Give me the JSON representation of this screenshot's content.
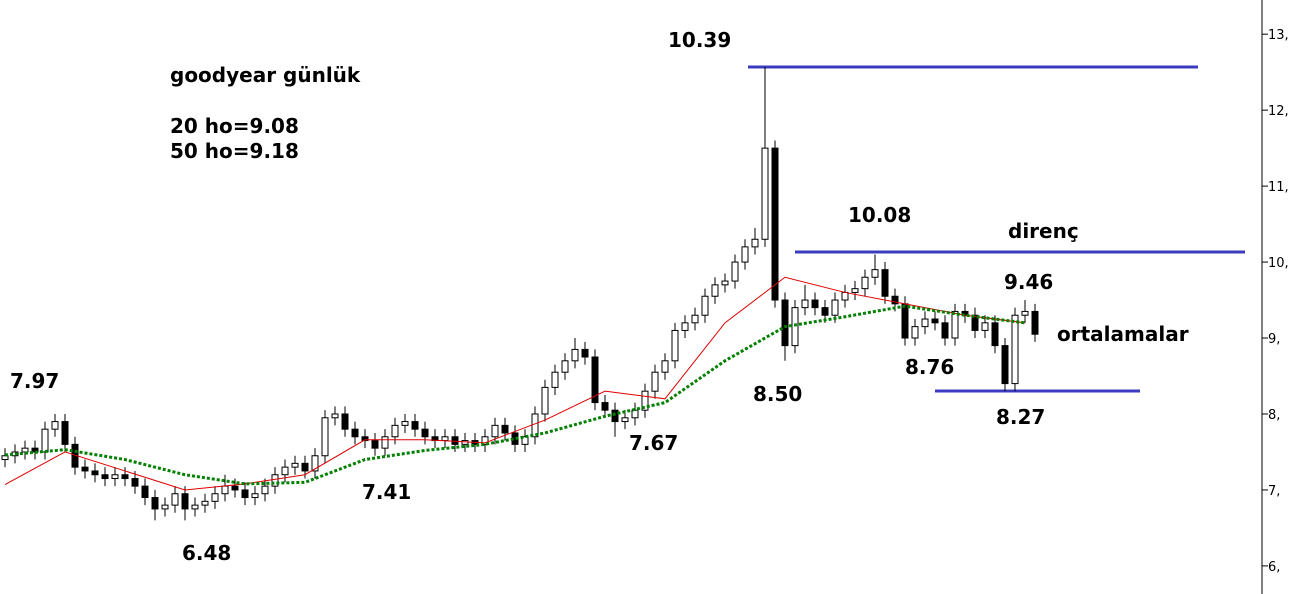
{
  "chart_data": {
    "type": "candlestick",
    "annotations": [
      "goodyear günlük",
      "20 ho=9.08",
      "50 ho=9.18",
      "10.39",
      "10.08",
      "direnç",
      "9.46",
      "ortalamalar",
      "8.50",
      "8.76",
      "8.27",
      "7.97",
      "7.67",
      "7.41",
      "6.48"
    ],
    "ylim": [
      5.63,
      13.45
    ],
    "yticks": [
      {
        "value": 13,
        "label": "13,"
      },
      {
        "value": 12,
        "label": "12,"
      },
      {
        "value": 11,
        "label": "11,"
      },
      {
        "value": 10,
        "label": "10,"
      },
      {
        "value": 9,
        "label": "9,"
      },
      {
        "value": 8,
        "label": "8,"
      },
      {
        "value": 7,
        "label": "7,"
      },
      {
        "value": 6,
        "label": "6,"
      }
    ],
    "open": [
      7.4,
      7.45,
      7.5,
      7.55,
      7.5,
      7.8,
      7.9,
      7.6,
      7.3,
      7.25,
      7.2,
      7.15,
      7.2,
      7.15,
      7.05,
      6.9,
      6.75,
      6.8,
      6.95,
      6.75,
      6.8,
      6.85,
      6.95,
      7.05,
      7.0,
      6.9,
      6.95,
      7.05,
      7.2,
      7.3,
      7.35,
      7.25,
      7.45,
      7.95,
      8.0,
      7.8,
      7.7,
      7.65,
      7.55,
      7.7,
      7.85,
      7.9,
      7.8,
      7.7,
      7.65,
      7.7,
      7.6,
      7.65,
      7.6,
      7.7,
      7.85,
      7.75,
      7.6,
      7.7,
      8.0,
      8.35,
      8.55,
      8.7,
      8.85,
      8.75,
      8.15,
      8.05,
      7.9,
      7.95,
      8.05,
      8.3,
      8.55,
      8.7,
      9.1,
      9.2,
      9.3,
      9.55,
      9.7,
      9.75,
      10.0,
      10.2,
      10.3,
      11.5,
      9.5,
      8.9,
      9.4,
      9.5,
      9.4,
      9.3,
      9.5,
      9.6,
      9.65,
      9.8,
      9.9,
      9.55,
      9.45,
      9.0,
      9.15,
      9.25,
      9.2,
      9.0,
      9.35,
      9.3,
      9.1,
      9.2,
      8.9,
      8.4,
      9.3,
      9.35
    ],
    "high": [
      7.55,
      7.6,
      7.65,
      7.65,
      7.9,
      8.0,
      8.0,
      7.7,
      7.4,
      7.35,
      7.3,
      7.3,
      7.3,
      7.25,
      7.15,
      7.0,
      6.9,
      7.05,
      7.05,
      6.9,
      6.95,
      7.05,
      7.2,
      7.15,
      7.1,
      7.05,
      7.15,
      7.3,
      7.4,
      7.45,
      7.45,
      7.55,
      8.05,
      8.1,
      8.1,
      7.9,
      7.8,
      7.75,
      7.8,
      7.95,
      8.0,
      8.0,
      7.9,
      7.8,
      7.8,
      7.8,
      7.75,
      7.75,
      7.8,
      7.95,
      7.95,
      7.85,
      7.8,
      8.1,
      8.45,
      8.65,
      8.8,
      9.0,
      8.95,
      8.85,
      8.25,
      8.15,
      8.05,
      8.15,
      8.4,
      8.65,
      8.8,
      9.2,
      9.3,
      9.4,
      9.65,
      9.8,
      9.85,
      10.1,
      10.3,
      10.45,
      12.57,
      11.6,
      9.6,
      9.5,
      9.7,
      9.6,
      9.5,
      9.6,
      9.7,
      9.75,
      9.9,
      10.1,
      10.0,
      9.65,
      9.55,
      9.25,
      9.35,
      9.35,
      9.3,
      9.45,
      9.45,
      9.4,
      9.3,
      9.3,
      9.0,
      9.4,
      9.5,
      9.45
    ],
    "low": [
      7.3,
      7.35,
      7.4,
      7.4,
      7.4,
      7.7,
      7.5,
      7.2,
      7.15,
      7.1,
      7.05,
      7.05,
      7.05,
      6.95,
      6.8,
      6.6,
      6.65,
      6.7,
      6.6,
      6.65,
      6.7,
      6.75,
      6.85,
      6.9,
      6.8,
      6.8,
      6.85,
      6.95,
      7.1,
      7.2,
      7.15,
      7.15,
      7.35,
      7.85,
      7.7,
      7.6,
      7.55,
      7.45,
      7.45,
      7.6,
      7.75,
      7.7,
      7.6,
      7.55,
      7.55,
      7.5,
      7.5,
      7.5,
      7.5,
      7.6,
      7.65,
      7.5,
      7.5,
      7.6,
      7.9,
      8.25,
      8.45,
      8.6,
      8.65,
      8.05,
      7.95,
      7.7,
      7.8,
      7.85,
      7.95,
      8.2,
      8.45,
      8.6,
      9.0,
      9.1,
      9.2,
      9.45,
      9.6,
      9.65,
      9.9,
      10.1,
      10.2,
      9.4,
      8.7,
      8.8,
      9.3,
      9.3,
      9.2,
      9.2,
      9.4,
      9.5,
      9.55,
      9.7,
      9.45,
      9.35,
      8.9,
      8.9,
      9.05,
      9.1,
      8.9,
      8.9,
      9.2,
      9.0,
      9.0,
      8.8,
      8.3,
      8.3,
      9.2,
      8.95
    ],
    "close": [
      7.45,
      7.5,
      7.55,
      7.5,
      7.8,
      7.9,
      7.6,
      7.3,
      7.25,
      7.2,
      7.15,
      7.2,
      7.15,
      7.05,
      6.9,
      6.75,
      6.8,
      6.95,
      6.75,
      6.8,
      6.85,
      6.95,
      7.05,
      7.0,
      6.9,
      6.95,
      7.05,
      7.2,
      7.3,
      7.35,
      7.25,
      7.45,
      7.95,
      8.0,
      7.8,
      7.7,
      7.65,
      7.55,
      7.7,
      7.85,
      7.9,
      7.8,
      7.7,
      7.65,
      7.7,
      7.6,
      7.65,
      7.6,
      7.7,
      7.85,
      7.75,
      7.6,
      7.7,
      8.0,
      8.35,
      8.55,
      8.7,
      8.85,
      8.75,
      8.15,
      8.05,
      7.9,
      7.95,
      8.05,
      8.3,
      8.55,
      8.7,
      9.1,
      9.2,
      9.3,
      9.55,
      9.7,
      9.75,
      10.0,
      10.2,
      10.3,
      11.5,
      9.5,
      8.9,
      9.4,
      9.5,
      9.4,
      9.3,
      9.5,
      9.6,
      9.65,
      9.8,
      9.9,
      9.55,
      9.45,
      9.0,
      9.15,
      9.25,
      9.2,
      9.0,
      9.35,
      9.3,
      9.1,
      9.2,
      8.9,
      8.4,
      9.3,
      9.35,
      9.05
    ],
    "lines": [
      {
        "color": "#e00000",
        "dashed": false,
        "x": [
          0,
          6,
          12,
          18,
          24,
          30,
          36,
          42,
          48,
          54,
          60,
          66,
          72,
          78,
          84,
          90,
          96,
          102
        ],
        "values": [
          7.07,
          7.5,
          7.25,
          7.0,
          7.08,
          7.2,
          7.66,
          7.66,
          7.62,
          7.92,
          8.3,
          8.2,
          9.2,
          9.8,
          9.6,
          9.45,
          9.3,
          9.2
        ]
      },
      {
        "color": "#008000",
        "dashed": true,
        "x": [
          0,
          6,
          12,
          18,
          24,
          30,
          36,
          42,
          48,
          54,
          60,
          66,
          72,
          78,
          84,
          90,
          96,
          102
        ],
        "values": [
          7.46,
          7.53,
          7.4,
          7.2,
          7.08,
          7.1,
          7.4,
          7.52,
          7.6,
          7.75,
          7.97,
          8.15,
          8.7,
          9.15,
          9.28,
          9.42,
          9.3,
          9.2
        ]
      }
    ]
  }
}
